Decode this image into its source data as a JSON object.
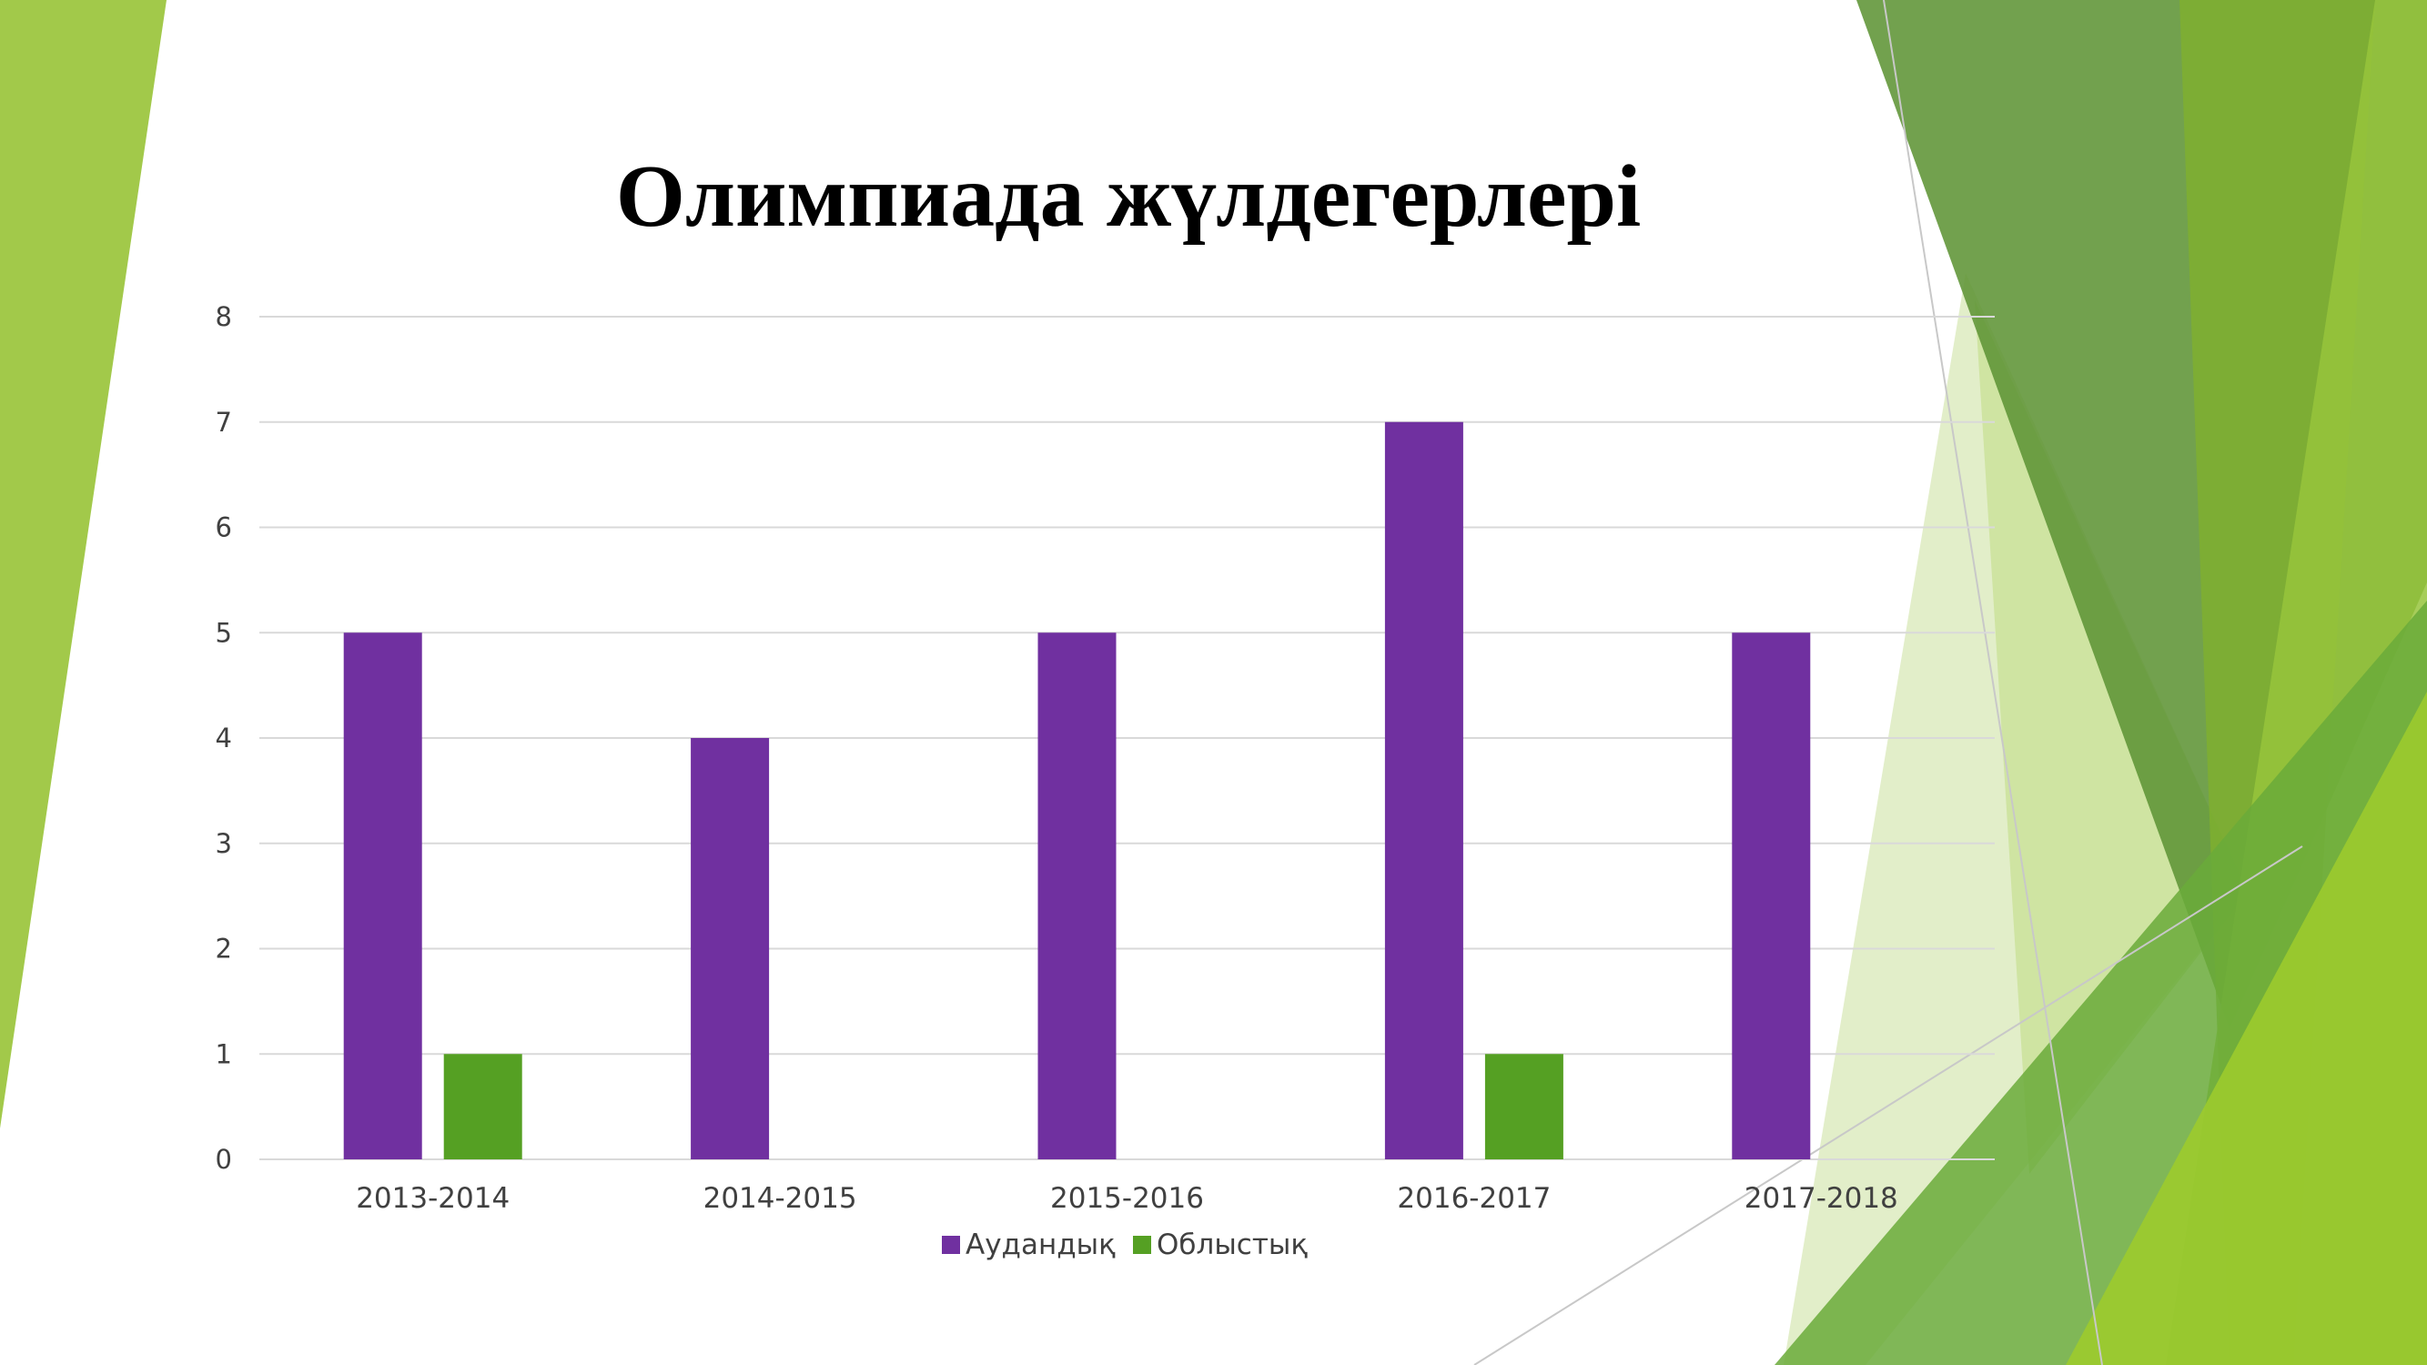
{
  "slide": {
    "title": "Олимпиада жүлдегерлері"
  },
  "colors": {
    "series_1": "#7030a0",
    "series_2": "#55a023",
    "deco_light": "#a2c94a",
    "deco_mid": "#8cb83a",
    "deco_dark": "#5f9436",
    "deco_pale": "#cfe4a2",
    "gridline": "#d9d9d9",
    "axis": "#d9d9d9"
  },
  "chart_data": {
    "type": "bar",
    "title": "",
    "xlabel": "",
    "ylabel": "",
    "categories": [
      "2013-2014",
      "2014-2015",
      "2015-2016",
      "2016-2017",
      "2017-2018"
    ],
    "series": [
      {
        "name": "Аудандық",
        "values": [
          5,
          4,
          5,
          7,
          5
        ]
      },
      {
        "name": "Облыстық",
        "values": [
          1,
          0,
          0,
          1,
          0
        ]
      }
    ],
    "ylim": [
      0,
      8
    ],
    "yticks": [
      "0",
      "1",
      "2",
      "3",
      "4",
      "5",
      "6",
      "7",
      "8"
    ],
    "grid": true,
    "legend": "bottom"
  }
}
